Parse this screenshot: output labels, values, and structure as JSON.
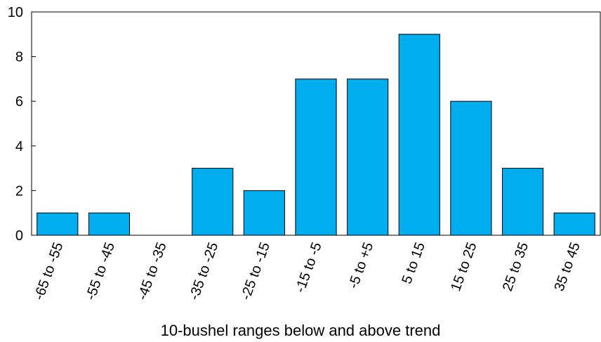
{
  "chart_data": {
    "type": "bar",
    "title": "",
    "xlabel": "10-bushel ranges below and above trend",
    "ylabel": "",
    "ylim": [
      0,
      10
    ],
    "yticks": [
      0,
      2,
      4,
      6,
      8,
      10
    ],
    "categories": [
      "-65 to -55",
      "-55 to -45",
      "-45 to -35",
      "-35 to -25",
      "-25 to -15",
      "-15 to -5",
      "-5 to +5",
      "5 to 15",
      "15 to 25",
      "25 to 35",
      "35 to 45"
    ],
    "values": [
      1,
      1,
      0,
      3,
      2,
      7,
      7,
      9,
      6,
      3,
      1
    ],
    "bar_color": "#00aeef",
    "grid": false,
    "legend": "none"
  }
}
